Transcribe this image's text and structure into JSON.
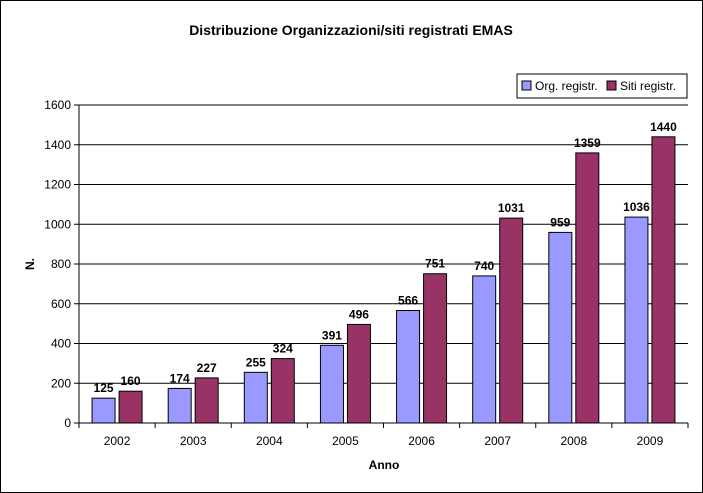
{
  "chart_data": {
    "type": "bar",
    "title": "Distribuzione Organizzazioni/siti registrati EMAS",
    "xlabel": "Anno",
    "ylabel": "N.",
    "categories": [
      "2002",
      "2003",
      "2004",
      "2005",
      "2006",
      "2007",
      "2008",
      "2009"
    ],
    "ylim": [
      0,
      1600
    ],
    "yticks": [
      0,
      200,
      400,
      600,
      800,
      1000,
      1200,
      1400,
      1600
    ],
    "grid": true,
    "legend_position": "top-right",
    "series": [
      {
        "name": "Org. registr.",
        "color": "#9999ff",
        "values": [
          125,
          174,
          255,
          391,
          566,
          740,
          959,
          1036
        ]
      },
      {
        "name": "Siti registr.",
        "color": "#993366",
        "values": [
          160,
          227,
          324,
          496,
          751,
          1031,
          1359,
          1440
        ]
      }
    ]
  }
}
